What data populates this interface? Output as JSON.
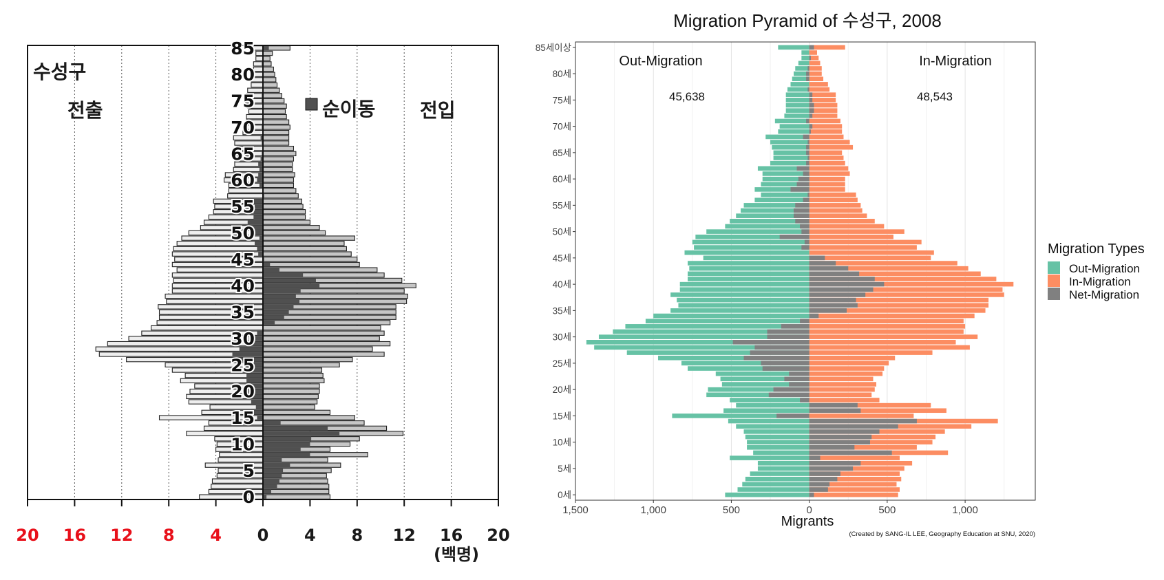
{
  "chart_data": [
    {
      "type": "bar",
      "subtype": "population-pyramid",
      "region_label": "수성구",
      "left_label": "전출",
      "right_label": "전입",
      "legend": {
        "swatch_label": "순이동",
        "placement": "top-right"
      },
      "ages": [
        0,
        1,
        2,
        3,
        4,
        5,
        6,
        7,
        8,
        9,
        10,
        11,
        12,
        13,
        14,
        15,
        16,
        17,
        18,
        19,
        20,
        21,
        22,
        23,
        24,
        25,
        26,
        27,
        28,
        29,
        30,
        31,
        32,
        33,
        34,
        35,
        36,
        37,
        38,
        39,
        40,
        41,
        42,
        43,
        44,
        45,
        46,
        47,
        48,
        49,
        50,
        51,
        52,
        53,
        54,
        55,
        56,
        57,
        58,
        59,
        60,
        61,
        62,
        63,
        64,
        65,
        66,
        67,
        68,
        69,
        70,
        71,
        72,
        73,
        74,
        75,
        76,
        77,
        78,
        79,
        80,
        81,
        82,
        83,
        84,
        85
      ],
      "y_tick_labels": [
        "0",
        "5",
        "10",
        "15",
        "20",
        "25",
        "30",
        "35",
        "40",
        "45",
        "50",
        "55",
        "60",
        "65",
        "70",
        "75",
        "80",
        "85"
      ],
      "x_tick_labels_left": [
        "20",
        "16",
        "12",
        "8",
        "4"
      ],
      "x_tick_labels_right": [
        "0",
        "4",
        "8",
        "12",
        "16",
        "20"
      ],
      "x_unit_label": "(백명)",
      "xlim": [
        -20,
        20
      ],
      "grid_x": [
        -16,
        -12,
        -8,
        -4,
        4,
        8,
        12,
        16
      ],
      "colors": {
        "out_fill": "#eeeeee",
        "in_fill": "#c6c6c6",
        "net_fill": "#505050",
        "left_tick_color": "#e8101a"
      },
      "series": [
        {
          "name": "전출",
          "values": [
            5.4,
            4.6,
            4.4,
            4.3,
            3.9,
            3.8,
            4.9,
            3.8,
            3.7,
            4.0,
            3.9,
            4.1,
            6.5,
            5.0,
            4.6,
            8.8,
            5.2,
            4.5,
            6.3,
            6.5,
            6.2,
            5.8,
            7.0,
            6.6,
            7.7,
            8.3,
            11.6,
            13.9,
            14.2,
            13.2,
            11.4,
            10.3,
            9.5,
            9.0,
            8.8,
            8.8,
            8.9,
            8.2,
            8.3,
            7.7,
            7.7,
            7.6,
            7.7,
            7.3,
            7.7,
            7.5,
            7.7,
            7.6,
            7.3,
            6.9,
            6.3,
            5.3,
            5.0,
            4.6,
            4.2,
            4.1,
            4.2,
            3.0,
            2.9,
            2.9,
            3.3,
            3.2,
            2.5,
            2.4,
            2.4,
            2.3,
            2.2,
            2.4,
            2.5,
            1.7,
            1.4,
            1.4,
            1.4,
            1.2,
            1.3,
            1.5,
            1.4,
            1.3,
            1.0,
            1.0,
            1.0,
            0.8,
            0.8,
            0.6,
            0.6,
            1.0
          ]
        },
        {
          "name": "전입",
          "values": [
            5.7,
            5.6,
            5.6,
            5.5,
            5.4,
            5.8,
            6.6,
            5.5,
            8.9,
            5.7,
            7.4,
            8.2,
            11.9,
            10.5,
            8.6,
            7.8,
            5.7,
            4.4,
            4.6,
            4.7,
            4.8,
            4.8,
            5.2,
            5.1,
            5.0,
            6.5,
            7.6,
            10.3,
            9.3,
            10.8,
            9.9,
            10.3,
            10.0,
            10.8,
            11.3,
            11.3,
            11.3,
            12.2,
            12.3,
            12.0,
            13.0,
            11.8,
            10.3,
            9.7,
            8.2,
            8.0,
            7.5,
            7.1,
            6.9,
            7.8,
            5.3,
            4.8,
            4.0,
            3.6,
            3.6,
            3.4,
            3.3,
            3.0,
            2.8,
            2.6,
            2.6,
            2.7,
            2.5,
            2.5,
            2.6,
            2.8,
            2.6,
            2.2,
            2.2,
            2.2,
            2.3,
            2.2,
            2.0,
            1.9,
            2.0,
            1.8,
            1.6,
            1.4,
            1.2,
            1.1,
            1.0,
            0.9,
            0.7,
            0.6,
            0.8,
            2.3
          ]
        },
        {
          "name": "순이동",
          "values": [
            0.3,
            0.7,
            1.2,
            1.4,
            1.6,
            1.7,
            2.3,
            1.6,
            4.0,
            3.2,
            4.0,
            4.1,
            6.5,
            5.5,
            1.5,
            -0.5,
            -0.8,
            -0.6,
            -1.0,
            -1.4,
            -1.6,
            -1.5,
            -1.4,
            -1.4,
            -1.4,
            -1.6,
            -2.6,
            -2.6,
            -2.0,
            -1.5,
            -1.2,
            -0.5,
            0.0,
            1.0,
            1.8,
            2.2,
            2.6,
            3.1,
            2.8,
            3.2,
            4.8,
            4.5,
            3.4,
            1.4,
            0.6,
            0.1,
            -0.4,
            -0.5,
            -0.7,
            -0.3,
            -1.0,
            -1.2,
            -1.3,
            -0.8,
            -0.8,
            -0.7,
            -0.8,
            0.1,
            0.0,
            -0.3,
            -0.5,
            -0.4,
            -0.3,
            -0.4,
            -0.2,
            -0.1,
            0.0,
            -0.1,
            -0.2,
            0.0,
            -0.1,
            0.0,
            0.0,
            0.0,
            0.0,
            -0.1,
            -0.1,
            0.0,
            0.0,
            0.0,
            0.0,
            0.0,
            -0.1,
            0.0,
            0.0,
            0.5
          ]
        }
      ]
    },
    {
      "type": "bar",
      "subtype": "population-pyramid",
      "title": "Migration Pyramid of 수성구, 2008",
      "xlabel": "Migrants",
      "caption": "(Created by SANG-IL LEE, Geography Education at SNU, 2020)",
      "annotations": [
        {
          "text": "Out-Migration",
          "side": "left"
        },
        {
          "text": "In-Migration",
          "side": "right"
        },
        {
          "text": "45,638",
          "side": "left"
        },
        {
          "text": "48,543",
          "side": "right"
        }
      ],
      "legend": {
        "title": "Migration Types",
        "placement": "right",
        "entries": [
          {
            "label": "Out-Migration",
            "color": "#66c2a5"
          },
          {
            "label": "In-Migration",
            "color": "#fc8d62"
          },
          {
            "label": "Net-Migration",
            "color": "#808080"
          }
        ]
      },
      "ages": [
        0,
        1,
        2,
        3,
        4,
        5,
        6,
        7,
        8,
        9,
        10,
        11,
        12,
        13,
        14,
        15,
        16,
        17,
        18,
        19,
        20,
        21,
        22,
        23,
        24,
        25,
        26,
        27,
        28,
        29,
        30,
        31,
        32,
        33,
        34,
        35,
        36,
        37,
        38,
        39,
        40,
        41,
        42,
        43,
        44,
        45,
        46,
        47,
        48,
        49,
        50,
        51,
        52,
        53,
        54,
        55,
        56,
        57,
        58,
        59,
        60,
        61,
        62,
        63,
        64,
        65,
        66,
        67,
        68,
        69,
        70,
        71,
        72,
        73,
        74,
        75,
        76,
        77,
        78,
        79,
        80,
        81,
        82,
        83,
        84,
        85
      ],
      "y_tick_labels": [
        "0세",
        "5세",
        "10세",
        "15세",
        "20세",
        "25세",
        "30세",
        "35세",
        "40세",
        "45세",
        "50세",
        "55세",
        "60세",
        "65세",
        "70세",
        "75세",
        "80세",
        "85세이상"
      ],
      "x_tick_labels": [
        "1,500",
        "1,000",
        "500",
        "0",
        "500",
        "1,000"
      ],
      "x_ticks": [
        -1500,
        -1000,
        -500,
        0,
        500,
        1000
      ],
      "xlim": [
        -1500,
        1450
      ],
      "series": [
        {
          "name": "Out-Migration",
          "values": [
            540,
            460,
            430,
            410,
            380,
            330,
            330,
            510,
            360,
            400,
            400,
            410,
            420,
            470,
            520,
            880,
            550,
            470,
            510,
            660,
            650,
            560,
            570,
            600,
            780,
            820,
            970,
            1170,
            1380,
            1430,
            1350,
            1260,
            1180,
            1050,
            1000,
            890,
            840,
            850,
            890,
            830,
            830,
            780,
            780,
            770,
            780,
            680,
            800,
            740,
            750,
            730,
            660,
            540,
            510,
            470,
            440,
            420,
            350,
            310,
            350,
            310,
            300,
            300,
            330,
            250,
            230,
            230,
            240,
            250,
            280,
            200,
            190,
            220,
            160,
            150,
            150,
            150,
            150,
            140,
            120,
            110,
            100,
            90,
            70,
            50,
            50,
            200
          ]
        },
        {
          "name": "In-Migration",
          "values": [
            570,
            580,
            560,
            590,
            580,
            610,
            660,
            580,
            890,
            690,
            790,
            810,
            870,
            1040,
            1210,
            670,
            880,
            780,
            450,
            400,
            420,
            430,
            410,
            470,
            480,
            510,
            550,
            790,
            1030,
            940,
            1080,
            990,
            1000,
            990,
            1060,
            1130,
            1150,
            1150,
            1250,
            1240,
            1310,
            1200,
            1100,
            1020,
            950,
            780,
            800,
            690,
            720,
            540,
            610,
            480,
            420,
            370,
            340,
            330,
            310,
            300,
            230,
            230,
            230,
            260,
            250,
            230,
            220,
            210,
            280,
            260,
            220,
            210,
            210,
            200,
            180,
            180,
            180,
            170,
            170,
            130,
            120,
            90,
            80,
            80,
            70,
            60,
            50,
            230
          ]
        },
        {
          "name": "Net-Migration",
          "values": [
            30,
            120,
            130,
            180,
            200,
            280,
            330,
            70,
            530,
            290,
            390,
            400,
            450,
            570,
            690,
            -210,
            330,
            310,
            -60,
            -260,
            -230,
            -130,
            -160,
            -130,
            -300,
            -310,
            -420,
            -380,
            -350,
            -490,
            -270,
            -270,
            -180,
            -60,
            60,
            240,
            310,
            300,
            360,
            410,
            480,
            420,
            320,
            250,
            170,
            100,
            0,
            -50,
            -30,
            -190,
            -50,
            -60,
            -90,
            -100,
            -100,
            -90,
            -40,
            -10,
            -120,
            -80,
            -70,
            -40,
            -80,
            -20,
            -10,
            -20,
            -20,
            -10,
            -40,
            10,
            20,
            -20,
            20,
            30,
            30,
            20,
            20,
            -10,
            0,
            -20,
            -20,
            -10,
            0,
            10,
            0,
            30
          ]
        }
      ]
    }
  ]
}
